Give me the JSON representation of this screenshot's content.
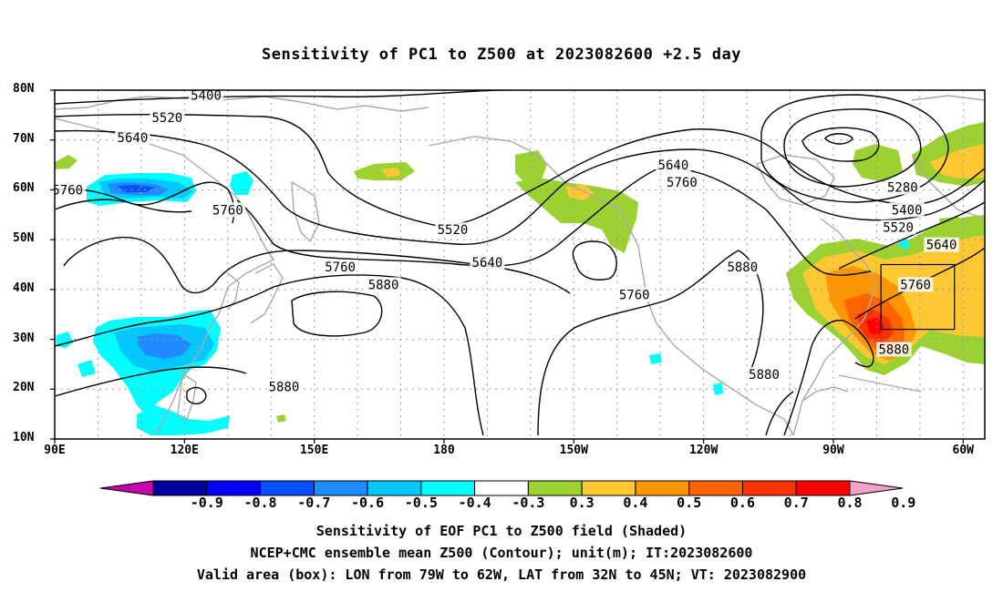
{
  "title": "Sensitivity of PC1 to Z500 at 2023082600 +2.5 day",
  "axes": {
    "lat_labels": [
      "80N",
      "70N",
      "60N",
      "50N",
      "40N",
      "30N",
      "20N",
      "10N"
    ],
    "lon_labels": [
      "90E",
      "120E",
      "150E",
      "180",
      "150W",
      "120W",
      "90W",
      "60W"
    ]
  },
  "contour_labels": [
    {
      "text": "5400",
      "lon": 125,
      "lat": 79
    },
    {
      "text": "5520",
      "lon": 116,
      "lat": 74.5
    },
    {
      "text": "5640",
      "lon": 108,
      "lat": 70.5
    },
    {
      "text": "5760",
      "lon": 93,
      "lat": 60
    },
    {
      "text": "5760",
      "lon": 130,
      "lat": 56
    },
    {
      "text": "5760",
      "lon": 156,
      "lat": 44.5
    },
    {
      "text": "5880",
      "lon": 166,
      "lat": 41
    },
    {
      "text": "5880",
      "lon": 143,
      "lat": 20.5
    },
    {
      "text": "5520",
      "lon": 182,
      "lat": 52
    },
    {
      "text": "5640",
      "lon": 190,
      "lat": 45.5
    },
    {
      "text": "5760",
      "lon": 224,
      "lat": 39
    },
    {
      "text": "5640",
      "lon": 233,
      "lat": 65
    },
    {
      "text": "5760",
      "lon": 235,
      "lat": 61.5
    },
    {
      "text": "5880",
      "lon": 249,
      "lat": 44.5
    },
    {
      "text": "5880",
      "lon": 254,
      "lat": 23
    },
    {
      "text": "5280",
      "lon": 286,
      "lat": 60.5
    },
    {
      "text": "5400",
      "lon": 287,
      "lat": 56
    },
    {
      "text": "5520",
      "lon": 285,
      "lat": 52.5
    },
    {
      "text": "5640",
      "lon": 295,
      "lat": 49
    },
    {
      "text": "5760",
      "lon": 289,
      "lat": 41
    },
    {
      "text": "5880",
      "lon": 284,
      "lat": 28
    }
  ],
  "colorbar": {
    "labels": [
      "-0.9",
      "-0.8",
      "-0.7",
      "-0.6",
      "-0.5",
      "-0.4",
      "-0.3",
      "0.3",
      "0.4",
      "0.5",
      "0.6",
      "0.7",
      "0.8",
      "0.9"
    ],
    "colors": [
      "#c800aa",
      "#0000a0",
      "#0000ff",
      "#0a50ff",
      "#1e8cff",
      "#00c8ff",
      "#00ffff",
      "#ffffff",
      "#9bd232",
      "#ffc832",
      "#ff9600",
      "#ff6400",
      "#ff3200",
      "#ff0000",
      "#f5a0c8"
    ]
  },
  "valid_box": {
    "lon_min": 281,
    "lon_max": 298,
    "lat_min": 32,
    "lat_max": 45
  },
  "captions": [
    "Sensitivity of EOF PC1 to Z500 field (Shaded)",
    "NCEP+CMC ensemble mean Z500 (Contour); unit(m); IT:2023082600",
    "Valid area (box): LON from 79W to 62W, LAT from 32N to 45N; VT: 2023082900"
  ]
}
